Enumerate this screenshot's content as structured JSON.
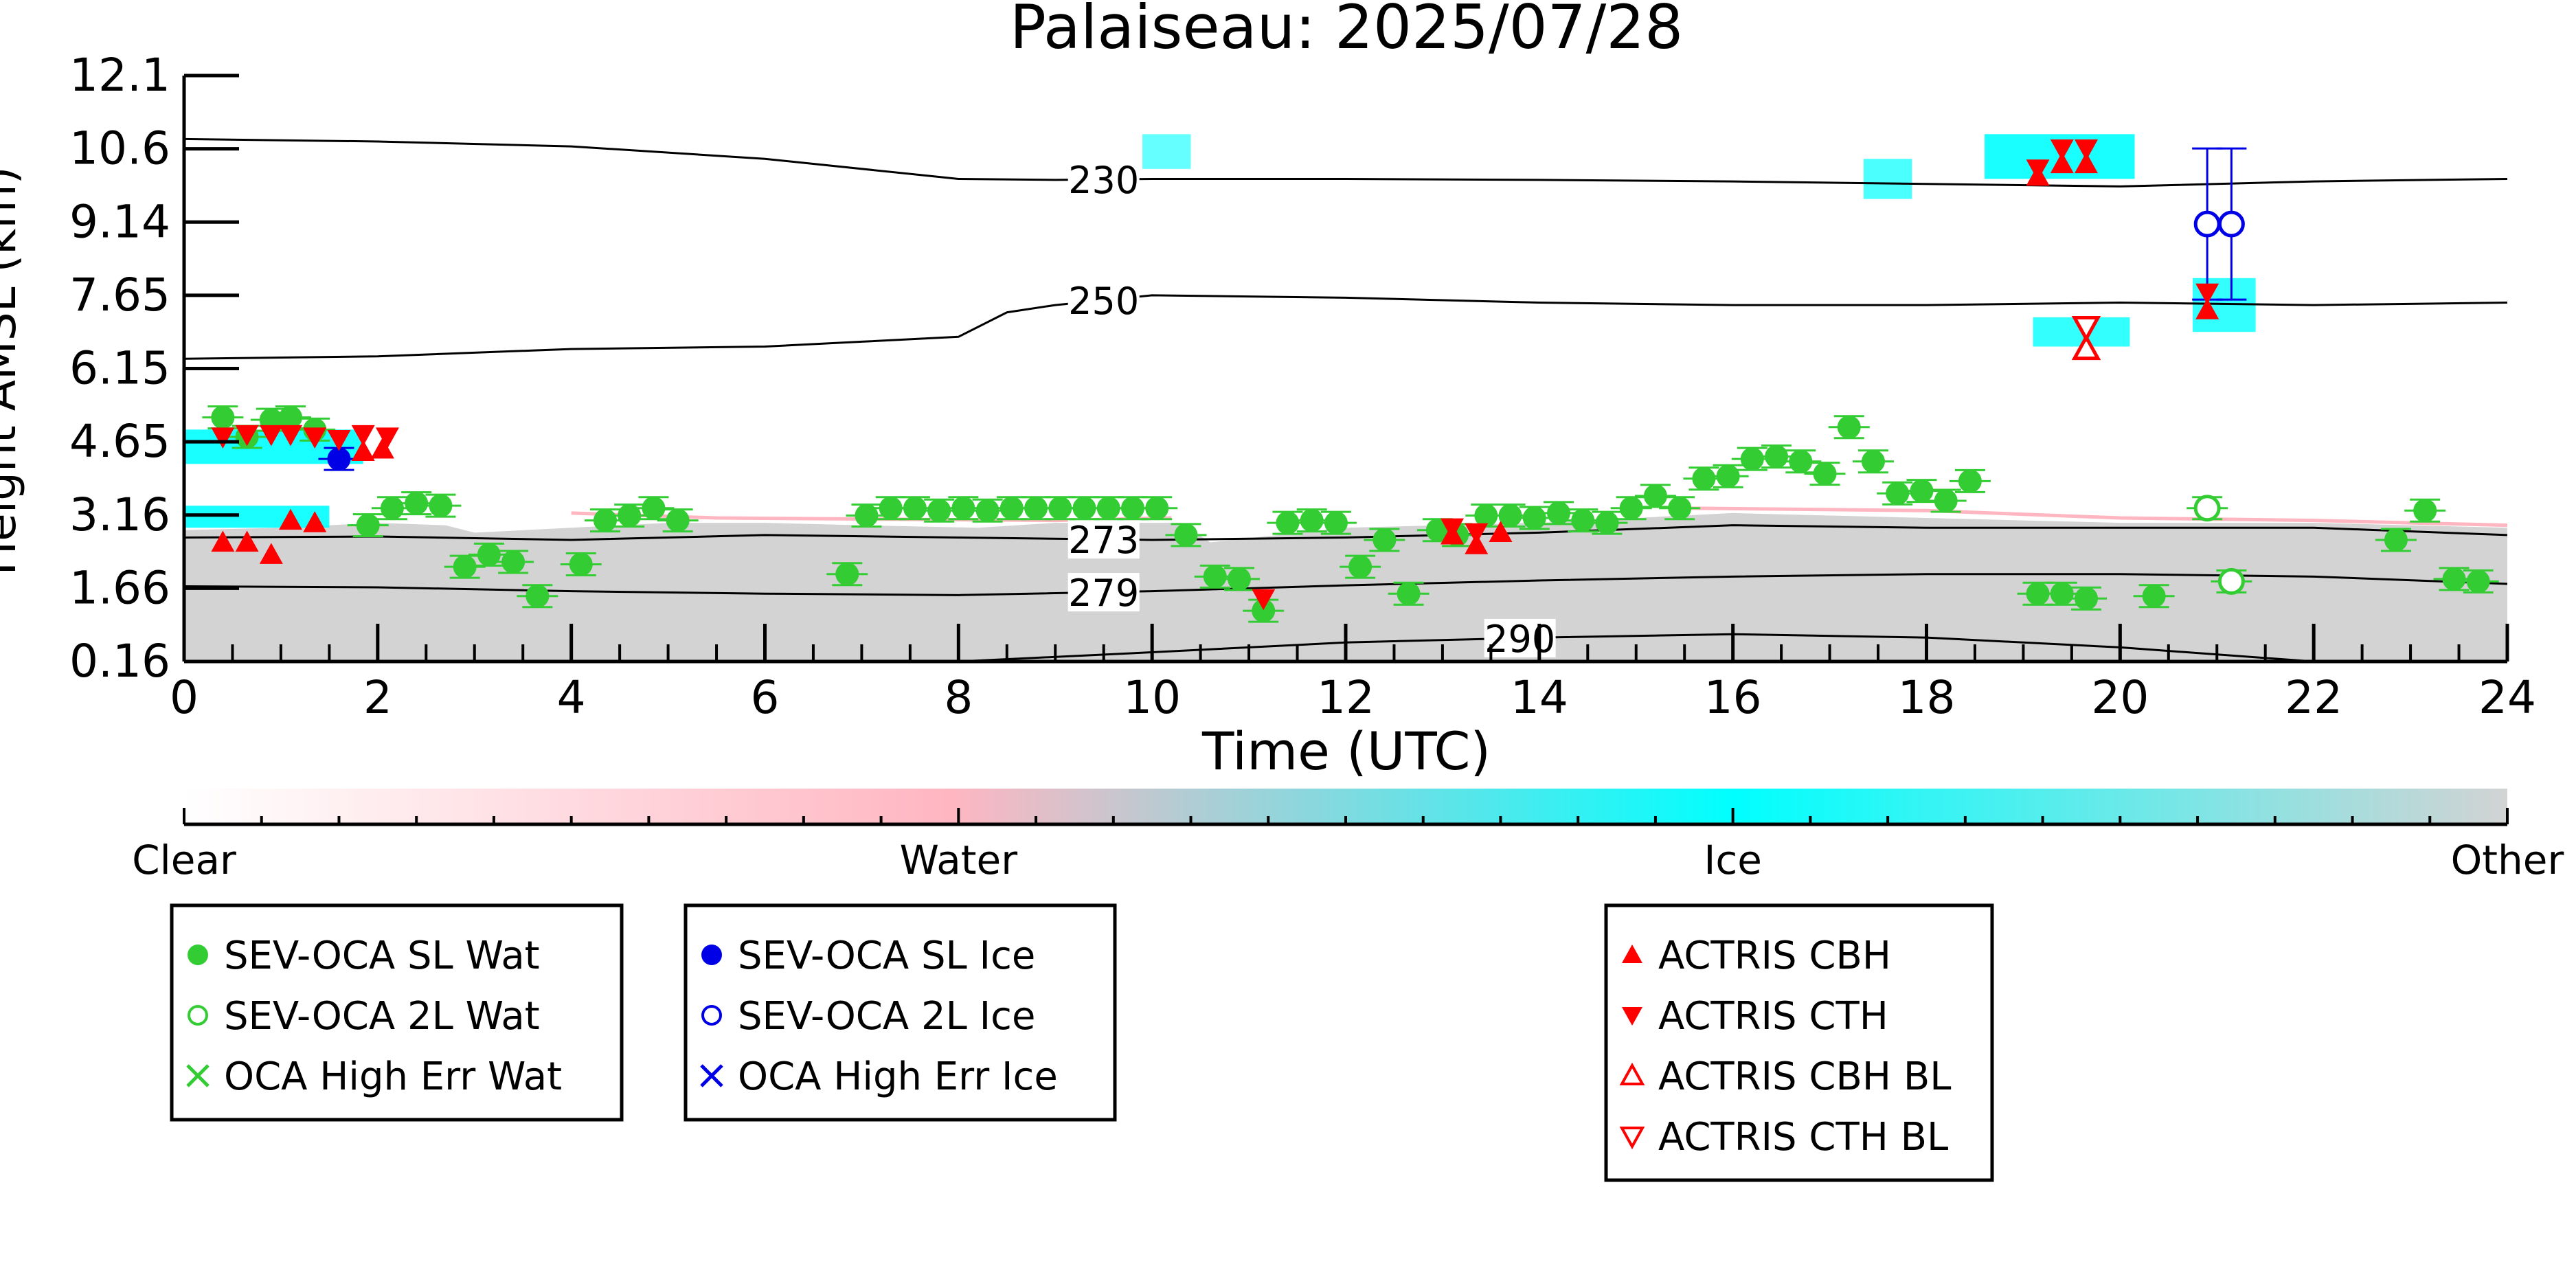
{
  "chart_data": {
    "type": "scatter",
    "title": "Palaiseau: 2025/07/28",
    "xlabel": "Time (UTC)",
    "ylabel": "Height AMSL (km)",
    "xlim": [
      0,
      24
    ],
    "ylim": [
      0.16,
      12.1
    ],
    "xticks": [
      "0",
      "2",
      "4",
      "6",
      "8",
      "10",
      "12",
      "14",
      "16",
      "18",
      "20",
      "22",
      "24"
    ],
    "yticks": [
      "0.16",
      "1.66",
      "3.16",
      "4.65",
      "6.15",
      "7.65",
      "9.14",
      "10.6",
      "12.1"
    ],
    "grid": false,
    "colorbar": {
      "labels": [
        "Clear",
        "Water",
        "Ice",
        "Other"
      ],
      "colors": [
        "#ffffff",
        "#ffb6c1",
        "#00ffff",
        "#d3d3d3"
      ]
    },
    "temperature_contours": [
      {
        "label": "230",
        "x": [
          0,
          2,
          4,
          6,
          8,
          9,
          10,
          12,
          14,
          16,
          18,
          20,
          22,
          24
        ],
        "y": [
          10.8,
          10.75,
          10.65,
          10.4,
          10.0,
          9.98,
          10.0,
          10.0,
          9.98,
          9.95,
          9.9,
          9.85,
          9.95,
          10.0
        ]
      },
      {
        "label": "250",
        "x": [
          0,
          2,
          4,
          6,
          7,
          8,
          8.5,
          9,
          10,
          12,
          14,
          16,
          18,
          20,
          22,
          24
        ],
        "y": [
          6.35,
          6.4,
          6.55,
          6.6,
          6.7,
          6.8,
          7.3,
          7.45,
          7.65,
          7.6,
          7.5,
          7.45,
          7.45,
          7.5,
          7.45,
          7.5
        ]
      },
      {
        "label": "273",
        "x": [
          0,
          2,
          4,
          6,
          8,
          10,
          12,
          14,
          16,
          18,
          20,
          22,
          24
        ],
        "y": [
          2.7,
          2.72,
          2.65,
          2.75,
          2.7,
          2.65,
          2.7,
          2.8,
          2.95,
          2.9,
          2.9,
          2.9,
          2.75
        ]
      },
      {
        "label": "279",
        "x": [
          0,
          2,
          4,
          6,
          8,
          10,
          12,
          14,
          16,
          18,
          20,
          22,
          24
        ],
        "y": [
          1.7,
          1.68,
          1.6,
          1.55,
          1.52,
          1.6,
          1.72,
          1.82,
          1.9,
          1.95,
          1.95,
          1.9,
          1.75
        ]
      },
      {
        "label": "290",
        "x": [
          8,
          10,
          12,
          14,
          16,
          18,
          20,
          22
        ],
        "y": [
          0.16,
          0.35,
          0.55,
          0.65,
          0.72,
          0.65,
          0.45,
          0.16
        ]
      }
    ],
    "series": [
      {
        "name": "SEV-OCA SL Wat",
        "color": "#33cc33",
        "marker": "filled-circle",
        "points": [
          [
            0.4,
            5.15
          ],
          [
            0.65,
            4.75
          ],
          [
            0.9,
            5.1
          ],
          [
            1.1,
            5.15
          ],
          [
            1.35,
            4.9
          ],
          [
            1.9,
            2.95
          ],
          [
            2.15,
            3.3
          ],
          [
            2.4,
            3.4
          ],
          [
            2.65,
            3.35
          ],
          [
            2.9,
            2.1
          ],
          [
            3.15,
            2.35
          ],
          [
            3.4,
            2.2
          ],
          [
            3.65,
            1.5
          ],
          [
            4.1,
            2.15
          ],
          [
            4.35,
            3.05
          ],
          [
            4.6,
            3.15
          ],
          [
            4.85,
            3.3
          ],
          [
            5.1,
            3.05
          ],
          [
            6.85,
            1.95
          ],
          [
            7.05,
            3.15
          ],
          [
            7.3,
            3.3
          ],
          [
            7.55,
            3.3
          ],
          [
            7.8,
            3.25
          ],
          [
            8.05,
            3.3
          ],
          [
            8.3,
            3.25
          ],
          [
            8.55,
            3.3
          ],
          [
            8.8,
            3.3
          ],
          [
            9.05,
            3.3
          ],
          [
            9.3,
            3.3
          ],
          [
            9.55,
            3.3
          ],
          [
            9.8,
            3.3
          ],
          [
            10.05,
            3.3
          ],
          [
            10.35,
            2.75
          ],
          [
            10.65,
            1.9
          ],
          [
            10.9,
            1.85
          ],
          [
            11.15,
            1.2
          ],
          [
            11.4,
            3.0
          ],
          [
            11.65,
            3.05
          ],
          [
            11.9,
            3.0
          ],
          [
            12.15,
            2.1
          ],
          [
            12.4,
            2.65
          ],
          [
            12.65,
            1.55
          ],
          [
            12.95,
            2.85
          ],
          [
            13.15,
            2.75
          ],
          [
            13.45,
            3.15
          ],
          [
            13.7,
            3.15
          ],
          [
            13.95,
            3.1
          ],
          [
            14.2,
            3.2
          ],
          [
            14.45,
            3.05
          ],
          [
            14.7,
            3.0
          ],
          [
            14.95,
            3.3
          ],
          [
            15.2,
            3.55
          ],
          [
            15.45,
            3.3
          ],
          [
            15.7,
            3.9
          ],
          [
            15.95,
            3.95
          ],
          [
            16.2,
            4.3
          ],
          [
            16.45,
            4.35
          ],
          [
            16.7,
            4.25
          ],
          [
            16.95,
            4.0
          ],
          [
            17.2,
            4.95
          ],
          [
            17.45,
            4.25
          ],
          [
            17.7,
            3.6
          ],
          [
            17.95,
            3.65
          ],
          [
            18.2,
            3.45
          ],
          [
            18.45,
            3.85
          ],
          [
            19.15,
            1.55
          ],
          [
            19.4,
            1.55
          ],
          [
            19.65,
            1.45
          ],
          [
            20.35,
            1.5
          ],
          [
            22.85,
            2.65
          ],
          [
            23.15,
            3.25
          ],
          [
            23.45,
            1.85
          ],
          [
            23.7,
            1.8
          ]
        ]
      },
      {
        "name": "SEV-OCA 2L Wat",
        "color": "#33cc33",
        "marker": "open-circle",
        "points": [
          [
            20.9,
            3.3
          ],
          [
            21.15,
            1.8
          ]
        ]
      },
      {
        "name": "OCA High Err Wat",
        "color": "#33cc33",
        "marker": "x",
        "points": []
      },
      {
        "name": "SEV-OCA SL Ice",
        "color": "#0000e6",
        "marker": "filled-circle",
        "points": [
          [
            1.6,
            4.3
          ]
        ]
      },
      {
        "name": "SEV-OCA 2L Ice",
        "color": "#0000e6",
        "marker": "open-circle",
        "points": [
          [
            20.9,
            9.1
          ],
          [
            21.15,
            9.1
          ]
        ]
      },
      {
        "name": "OCA High Err Ice",
        "color": "#0000e6",
        "marker": "x",
        "points": []
      },
      {
        "name": "ACTRIS CBH",
        "color": "#ff0000",
        "marker": "triangle-up",
        "points": [
          [
            0.4,
            2.6
          ],
          [
            0.65,
            2.6
          ],
          [
            0.9,
            2.35
          ],
          [
            1.1,
            3.05
          ],
          [
            1.35,
            3.0
          ],
          [
            1.85,
            4.45
          ],
          [
            2.05,
            4.5
          ],
          [
            13.1,
            2.75
          ],
          [
            13.35,
            2.55
          ],
          [
            13.6,
            2.8
          ],
          [
            19.15,
            10.05
          ],
          [
            19.4,
            10.3
          ],
          [
            19.65,
            10.3
          ],
          [
            20.9,
            7.35
          ]
        ]
      },
      {
        "name": "ACTRIS CTH",
        "color": "#ff0000",
        "marker": "triangle-down",
        "points": [
          [
            0.4,
            4.75
          ],
          [
            0.65,
            4.8
          ],
          [
            0.9,
            4.8
          ],
          [
            1.1,
            4.8
          ],
          [
            1.35,
            4.75
          ],
          [
            1.6,
            4.7
          ],
          [
            1.85,
            4.8
          ],
          [
            2.1,
            4.75
          ],
          [
            11.15,
            1.45
          ],
          [
            13.1,
            2.9
          ],
          [
            13.35,
            2.8
          ],
          [
            19.15,
            10.2
          ],
          [
            19.4,
            10.6
          ],
          [
            19.65,
            10.6
          ],
          [
            20.9,
            7.7
          ]
        ]
      },
      {
        "name": "ACTRIS CBH BL",
        "color": "#ff0000",
        "marker": "open-triangle-up",
        "points": [
          [
            19.65,
            6.55
          ]
        ]
      },
      {
        "name": "ACTRIS CTH BL",
        "color": "#ff0000",
        "marker": "open-triangle-down",
        "points": [
          [
            19.65,
            7.0
          ]
        ]
      }
    ]
  }
}
